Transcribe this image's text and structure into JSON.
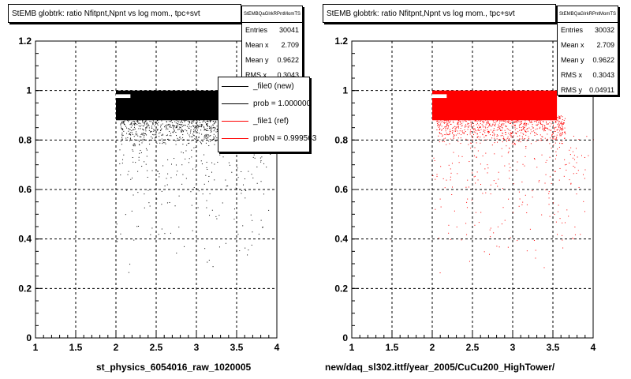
{
  "colors": {
    "file0": "#000000",
    "file1": "#ff0000",
    "grid": "#000000"
  },
  "left_panel": {
    "title": "StEMB globtrk: ratio Nfitpnt,Npnt vs log mom., tpc+svt",
    "stats_name": "StEMBQaGlrkRPntMomTS",
    "stats": [
      {
        "label": "Entries",
        "value": "30041"
      },
      {
        "label": "Mean x",
        "value": "2.709"
      },
      {
        "label": "Mean y",
        "value": "0.9622"
      },
      {
        "label": "RMS x",
        "value": "0.3043"
      }
    ],
    "legend": [
      {
        "label": "_file0 (new)",
        "color": "#000000"
      },
      {
        "label": "prob = 1.000000",
        "color": "#000000"
      },
      {
        "label": "_file1 (ref)",
        "color": "#ff0000"
      },
      {
        "label": "probN = 0.999563",
        "color": "#ff0000"
      }
    ],
    "xtitle": "st_physics_6054016_raw_1020005"
  },
  "right_panel": {
    "title": "StEMB globtrk: ratio Nfitpnt,Npnt vs log mom., tpc+svt",
    "stats_name": "StEMBQaGlrkRPntMomTS",
    "stats": [
      {
        "label": "Entries",
        "value": "30032"
      },
      {
        "label": "Mean x",
        "value": "2.709"
      },
      {
        "label": "Mean y",
        "value": "0.9622"
      },
      {
        "label": "RMS x",
        "value": "0.3043"
      },
      {
        "label": "RMS y",
        "value": "0.04911"
      }
    ],
    "xtitle": "new/daq_sl302.ittf/year_2005/CuCu200_HighTower/"
  },
  "chart_data": [
    {
      "type": "scatter",
      "title": "StEMB globtrk: ratio Nfitpnt,Npnt vs log mom., tpc+svt",
      "xlabel": "st_physics_6054016_raw_1020005",
      "ylabel": "",
      "xlim": [
        1,
        4
      ],
      "ylim": [
        0,
        1.2
      ],
      "x_ticks": [
        "1",
        "1.5",
        "2",
        "2.5",
        "3",
        "3.5",
        "4"
      ],
      "y_ticks": [
        "0",
        "0.2",
        "0.4",
        "0.6",
        "0.8",
        "1",
        "1.2"
      ],
      "grid": true,
      "series": [
        {
          "name": "_file0 (new)",
          "color": "#000000",
          "entries": 30041,
          "mean_x": 2.709,
          "mean_y": 0.9622,
          "rms_x": 0.3043,
          "dense_band": {
            "x": [
              2.0,
              3.55
            ],
            "y": [
              0.88,
              1.0
            ]
          },
          "sparse_tail": {
            "x": [
              2.0,
              4.0
            ],
            "y": [
              0.2,
              0.88
            ]
          }
        }
      ]
    },
    {
      "type": "scatter",
      "title": "StEMB globtrk: ratio Nfitpnt,Npnt vs log mom., tpc+svt",
      "xlabel": "new/daq_sl302.ittf/year_2005/CuCu200_HighTower/",
      "ylabel": "",
      "xlim": [
        1,
        4
      ],
      "ylim": [
        0,
        1.2
      ],
      "x_ticks": [
        "1",
        "1.5",
        "2",
        "2.5",
        "3",
        "3.5",
        "4"
      ],
      "y_ticks": [
        "0",
        "0.2",
        "0.4",
        "0.6",
        "0.8",
        "1",
        "1.2"
      ],
      "grid": true,
      "series": [
        {
          "name": "_file1 (ref)",
          "color": "#ff0000",
          "entries": 30032,
          "mean_x": 2.709,
          "mean_y": 0.9622,
          "rms_x": 0.3043,
          "rms_y": 0.04911,
          "dense_band": {
            "x": [
              2.0,
              3.55
            ],
            "y": [
              0.88,
              1.0
            ]
          },
          "sparse_tail": {
            "x": [
              2.0,
              4.0
            ],
            "y": [
              0.2,
              0.88
            ]
          }
        }
      ]
    }
  ]
}
